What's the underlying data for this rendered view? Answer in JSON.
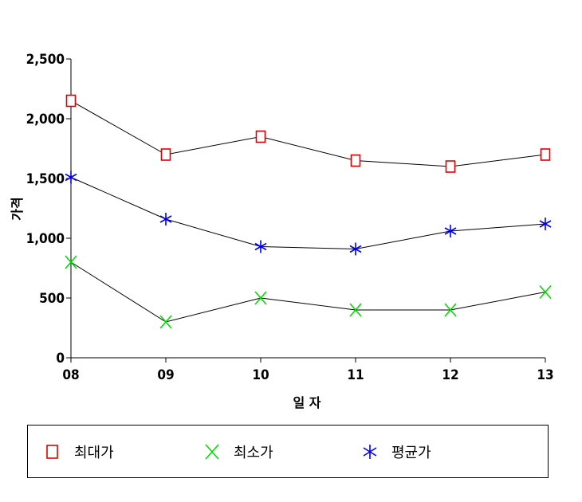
{
  "chart_data": {
    "type": "line",
    "title": "",
    "xlabel": "일 자",
    "ylabel": "가격",
    "categories": [
      "08",
      "09",
      "10",
      "11",
      "12",
      "13"
    ],
    "ylim": [
      0,
      2500
    ],
    "yticks": [
      0,
      500,
      1000,
      1500,
      2000,
      2500
    ],
    "ytick_labels": [
      "0",
      "500",
      "1,000",
      "1,500",
      "2,000",
      "2,500"
    ],
    "grid": false,
    "legend_position": "bottom",
    "series": [
      {
        "name": "최대가",
        "values": [
          2150,
          1700,
          1850,
          1650,
          1600,
          1700
        ],
        "marker": "square",
        "color": "#e00000"
      },
      {
        "name": "최소가",
        "values": [
          800,
          300,
          500,
          400,
          400,
          550
        ],
        "marker": "x",
        "color": "#00dd00"
      },
      {
        "name": "평균가",
        "values": [
          1510,
          1160,
          930,
          910,
          1060,
          1120
        ],
        "marker": "asterisk",
        "color": "#0000ee"
      }
    ]
  }
}
